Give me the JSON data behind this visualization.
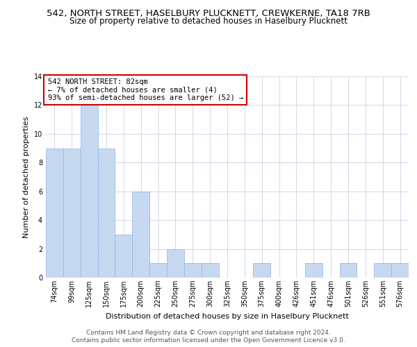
{
  "title1": "542, NORTH STREET, HASELBURY PLUCKNETT, CREWKERNE, TA18 7RB",
  "title2": "Size of property relative to detached houses in Haselbury Plucknett",
  "xlabel": "Distribution of detached houses by size in Haselbury Plucknett",
  "ylabel": "Number of detached properties",
  "categories": [
    "74sqm",
    "99sqm",
    "125sqm",
    "150sqm",
    "175sqm",
    "200sqm",
    "225sqm",
    "250sqm",
    "275sqm",
    "300sqm",
    "325sqm",
    "350sqm",
    "375sqm",
    "400sqm",
    "426sqm",
    "451sqm",
    "476sqm",
    "501sqm",
    "526sqm",
    "551sqm",
    "576sqm"
  ],
  "values": [
    9,
    9,
    12,
    9,
    3,
    6,
    1,
    2,
    1,
    1,
    0,
    0,
    1,
    0,
    0,
    1,
    0,
    1,
    0,
    1,
    1
  ],
  "bar_color": "#c6d9f1",
  "bar_edge_color": "#8db4e2",
  "annotation_text": "542 NORTH STREET: 82sqm\n← 7% of detached houses are smaller (4)\n93% of semi-detached houses are larger (52) →",
  "annotation_box_color": "#ffffff",
  "annotation_box_edge": "#cc0000",
  "ylim": [
    0,
    14
  ],
  "yticks": [
    0,
    2,
    4,
    6,
    8,
    10,
    12,
    14
  ],
  "footer1": "Contains HM Land Registry data © Crown copyright and database right 2024.",
  "footer2": "Contains public sector information licensed under the Open Government Licence v3.0.",
  "bg_color": "#ffffff",
  "grid_color": "#d0d8e8",
  "title1_fontsize": 9.5,
  "title2_fontsize": 8.5,
  "xlabel_fontsize": 8,
  "ylabel_fontsize": 8,
  "annotation_fontsize": 7.5,
  "footer_fontsize": 6.5,
  "tick_fontsize": 7
}
